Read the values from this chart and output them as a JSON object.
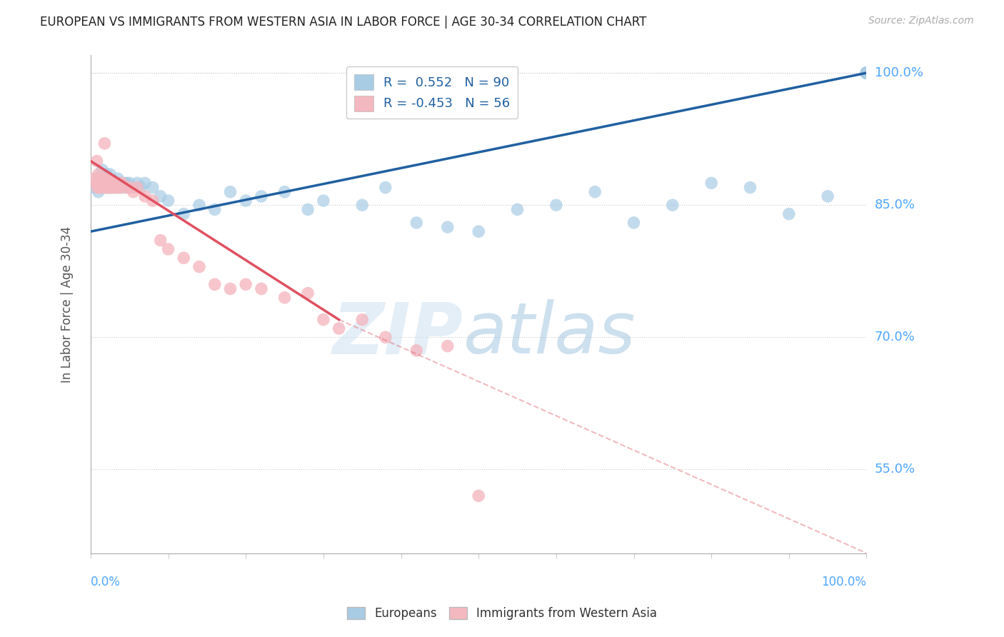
{
  "title": "EUROPEAN VS IMMIGRANTS FROM WESTERN ASIA IN LABOR FORCE | AGE 30-34 CORRELATION CHART",
  "source": "Source: ZipAtlas.com",
  "ylabel": "In Labor Force | Age 30-34",
  "watermark_zip": "ZIP",
  "watermark_atlas": "atlas",
  "legend_labels": [
    "Europeans",
    "Immigrants from Western Asia"
  ],
  "r_blue": 0.552,
  "n_blue": 90,
  "r_pink": -0.453,
  "n_pink": 56,
  "blue_color": "#a8cce4",
  "pink_color": "#f4b8c0",
  "blue_line_color": "#2060a0",
  "pink_line_color": "#e05060",
  "axis_color": "#4da6ff",
  "blue_scatter_x": [
    0.005,
    0.008,
    0.01,
    0.01,
    0.012,
    0.013,
    0.015,
    0.015,
    0.016,
    0.017,
    0.018,
    0.019,
    0.02,
    0.02,
    0.021,
    0.022,
    0.023,
    0.024,
    0.025,
    0.025,
    0.026,
    0.027,
    0.028,
    0.029,
    0.03,
    0.031,
    0.032,
    0.033,
    0.034,
    0.035,
    0.036,
    0.037,
    0.038,
    0.04,
    0.042,
    0.044,
    0.046,
    0.048,
    0.05,
    0.055,
    0.06,
    0.065,
    0.07,
    0.08,
    0.09,
    0.1,
    0.12,
    0.14,
    0.16,
    0.18,
    0.2,
    0.22,
    0.25,
    0.28,
    0.3,
    0.35,
    0.38,
    0.42,
    0.46,
    0.5,
    0.55,
    0.6,
    0.65,
    0.7,
    0.75,
    0.8,
    0.85,
    0.9,
    0.95,
    1.0,
    1.0,
    1.0,
    1.0,
    1.0,
    1.0,
    1.0,
    1.0,
    1.0,
    1.0,
    1.0,
    1.0,
    1.0,
    1.0,
    1.0,
    1.0,
    1.0,
    1.0,
    1.0,
    1.0,
    1.0
  ],
  "blue_scatter_y": [
    0.87,
    0.875,
    0.88,
    0.865,
    0.875,
    0.87,
    0.89,
    0.875,
    0.87,
    0.88,
    0.875,
    0.87,
    0.875,
    0.885,
    0.87,
    0.875,
    0.87,
    0.875,
    0.87,
    0.885,
    0.87,
    0.875,
    0.87,
    0.875,
    0.87,
    0.875,
    0.87,
    0.875,
    0.87,
    0.88,
    0.87,
    0.875,
    0.87,
    0.875,
    0.87,
    0.875,
    0.875,
    0.87,
    0.875,
    0.87,
    0.875,
    0.87,
    0.875,
    0.87,
    0.86,
    0.855,
    0.84,
    0.85,
    0.845,
    0.865,
    0.855,
    0.86,
    0.865,
    0.845,
    0.855,
    0.85,
    0.87,
    0.83,
    0.825,
    0.82,
    0.845,
    0.85,
    0.865,
    0.83,
    0.85,
    0.875,
    0.87,
    0.84,
    0.86,
    1.0,
    1.0,
    1.0,
    1.0,
    1.0,
    1.0,
    1.0,
    1.0,
    1.0,
    1.0,
    1.0,
    1.0,
    1.0,
    1.0,
    1.0,
    1.0,
    1.0,
    1.0,
    1.0,
    1.0,
    1.0
  ],
  "pink_scatter_x": [
    0.005,
    0.007,
    0.008,
    0.009,
    0.01,
    0.01,
    0.011,
    0.012,
    0.012,
    0.013,
    0.014,
    0.015,
    0.015,
    0.016,
    0.017,
    0.018,
    0.019,
    0.02,
    0.02,
    0.021,
    0.022,
    0.023,
    0.024,
    0.025,
    0.026,
    0.027,
    0.028,
    0.03,
    0.032,
    0.034,
    0.036,
    0.038,
    0.04,
    0.045,
    0.05,
    0.055,
    0.06,
    0.07,
    0.08,
    0.09,
    0.1,
    0.12,
    0.14,
    0.16,
    0.18,
    0.2,
    0.22,
    0.25,
    0.28,
    0.3,
    0.32,
    0.35,
    0.38,
    0.42,
    0.46,
    0.5
  ],
  "pink_scatter_y": [
    0.88,
    0.875,
    0.9,
    0.87,
    0.885,
    0.875,
    0.87,
    0.875,
    0.88,
    0.87,
    0.875,
    0.88,
    0.875,
    0.87,
    0.875,
    0.92,
    0.88,
    0.875,
    0.87,
    0.875,
    0.87,
    0.88,
    0.875,
    0.87,
    0.875,
    0.87,
    0.875,
    0.87,
    0.875,
    0.87,
    0.875,
    0.87,
    0.875,
    0.87,
    0.87,
    0.865,
    0.87,
    0.86,
    0.855,
    0.81,
    0.8,
    0.79,
    0.78,
    0.76,
    0.755,
    0.76,
    0.755,
    0.745,
    0.75,
    0.72,
    0.71,
    0.72,
    0.7,
    0.685,
    0.69,
    0.52
  ],
  "xlim": [
    0.0,
    1.0
  ],
  "ylim": [
    0.455,
    1.02
  ],
  "yticks": [
    0.55,
    0.7,
    0.85,
    1.0
  ],
  "ytick_labels": [
    "55.0%",
    "70.0%",
    "85.0%",
    "100.0%"
  ],
  "blue_trend": [
    0.0,
    1.0,
    0.82,
    1.0
  ],
  "pink_trend_solid": [
    0.0,
    0.32,
    0.9,
    0.72
  ],
  "pink_trend_dashed": [
    0.32,
    1.0,
    0.72,
    0.455
  ]
}
